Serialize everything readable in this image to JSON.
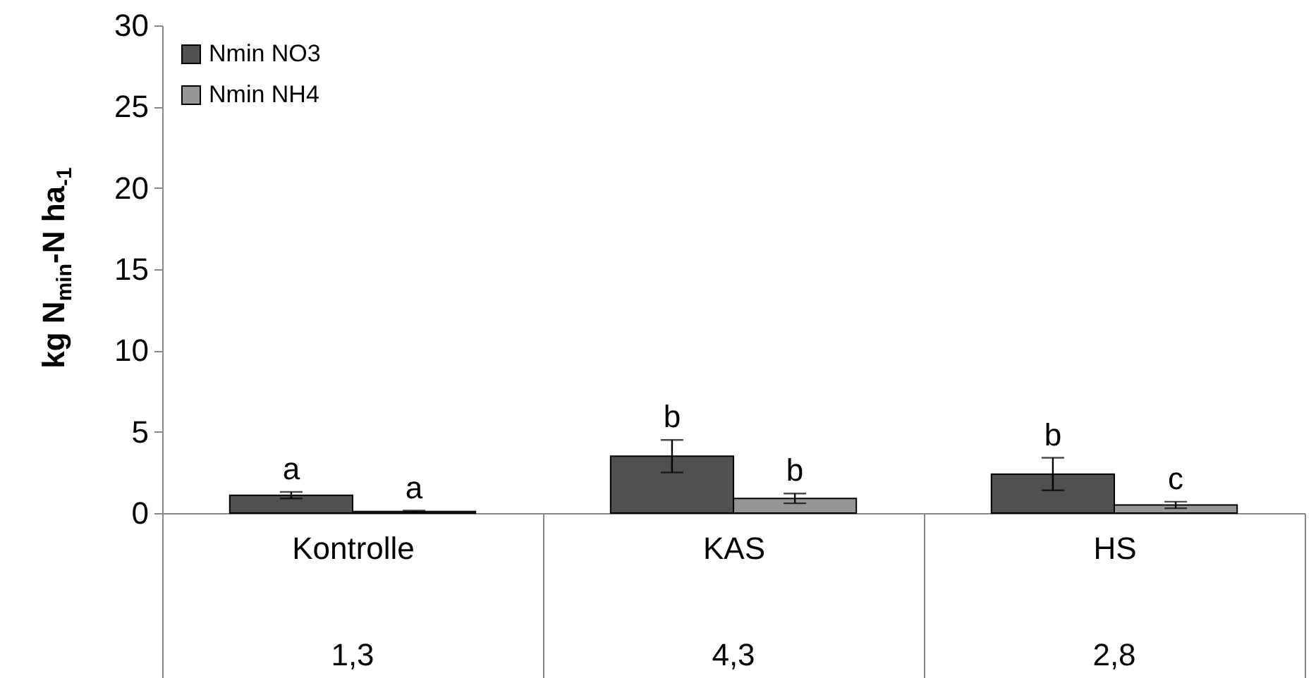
{
  "chart_data": {
    "type": "bar",
    "ylabel": "kg N$_{min}$-N ha$_{-1}$",
    "categories": [
      "Kontrolle",
      "KAS",
      "HS"
    ],
    "series": [
      {
        "name": "Nmin NO3",
        "color": "#505050",
        "values": [
          1.1,
          3.5,
          2.4
        ],
        "errors": [
          0.2,
          1.0,
          1.0
        ]
      },
      {
        "name": "Nmin NH4",
        "color": "#969696",
        "values": [
          0.1,
          0.9,
          0.5
        ],
        "errors": [
          0.05,
          0.3,
          0.2
        ]
      }
    ],
    "ylim": [
      0,
      30
    ],
    "yticks": [
      0,
      5,
      10,
      15,
      20,
      25,
      30
    ],
    "legend": "top left",
    "grid": false,
    "annotations": [
      {
        "text": "a",
        "x": "Kontrolle",
        "y": 1.1
      },
      {
        "text": "a",
        "x": "Kontrolle",
        "y": 0.1
      },
      {
        "text": "b",
        "x": "KAS",
        "y": 3.5
      },
      {
        "text": "b",
        "x": "KAS",
        "y": 0.9
      },
      {
        "text": "b",
        "x": "HS",
        "y": 2.4
      },
      {
        "text": "c",
        "x": "HS",
        "y": 0.5
      },
      "1,3",
      "4,3",
      "2,8"
    ]
  }
}
